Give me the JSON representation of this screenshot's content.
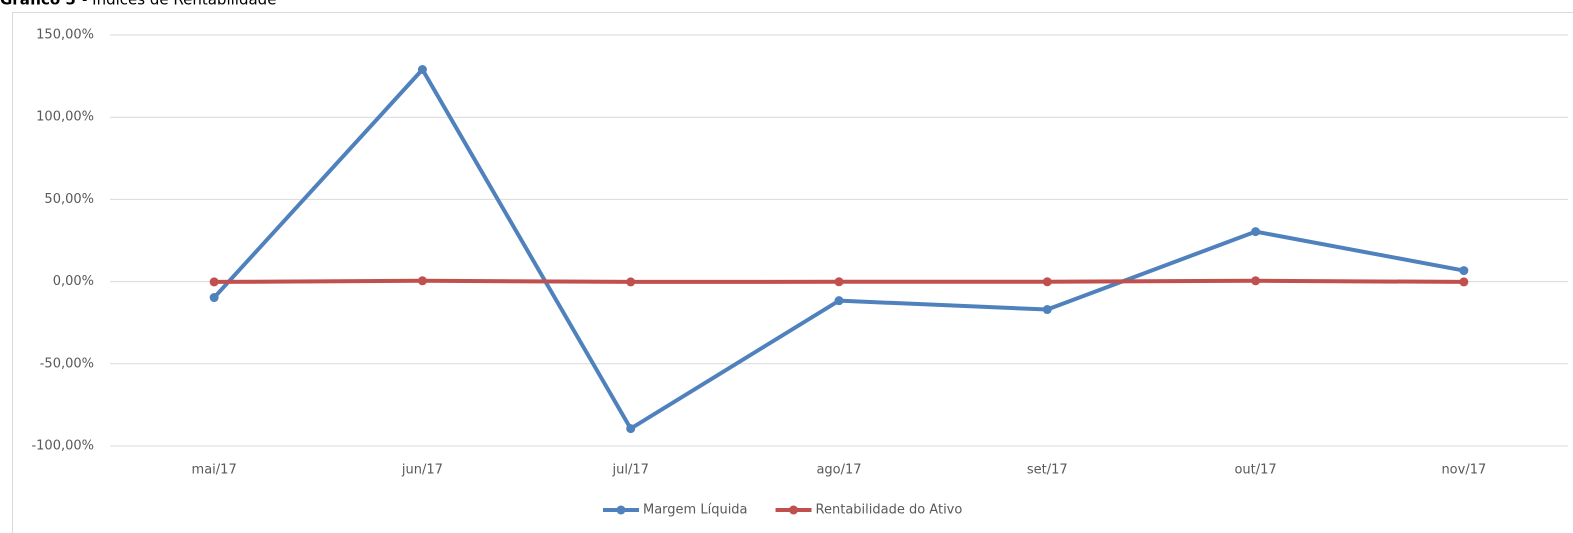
{
  "chart_data": {
    "type": "line",
    "title_label": "Gráfico 5",
    "title": "- Índices de Rentabilidade",
    "categories": [
      "mai/17",
      "jun/17",
      "jul/17",
      "ago/17",
      "set/17",
      "out/17",
      "nov/17"
    ],
    "series": [
      {
        "name": "Margem Líquida",
        "color": "#4f81bd",
        "values": [
          -9.7,
          129,
          -89.4,
          -11.6,
          -17,
          30.4,
          6.7
        ]
      },
      {
        "name": "Rentabilidade do Ativo",
        "color": "#c0504d",
        "values": [
          -0.2,
          0.5,
          -0.2,
          -0.1,
          -0.1,
          0.5,
          -0.2
        ]
      }
    ],
    "ylim": [
      -100,
      150
    ],
    "yticks": [
      {
        "value": -100,
        "label": "-100,00%"
      },
      {
        "value": -50,
        "label": "-50,00%"
      },
      {
        "value": 0,
        "label": "0,00%"
      },
      {
        "value": 50,
        "label": "50,00%"
      },
      {
        "value": 100,
        "label": "100,00%"
      },
      {
        "value": 150,
        "label": "150,00%"
      }
    ],
    "grid": true,
    "legend": "bottom"
  }
}
